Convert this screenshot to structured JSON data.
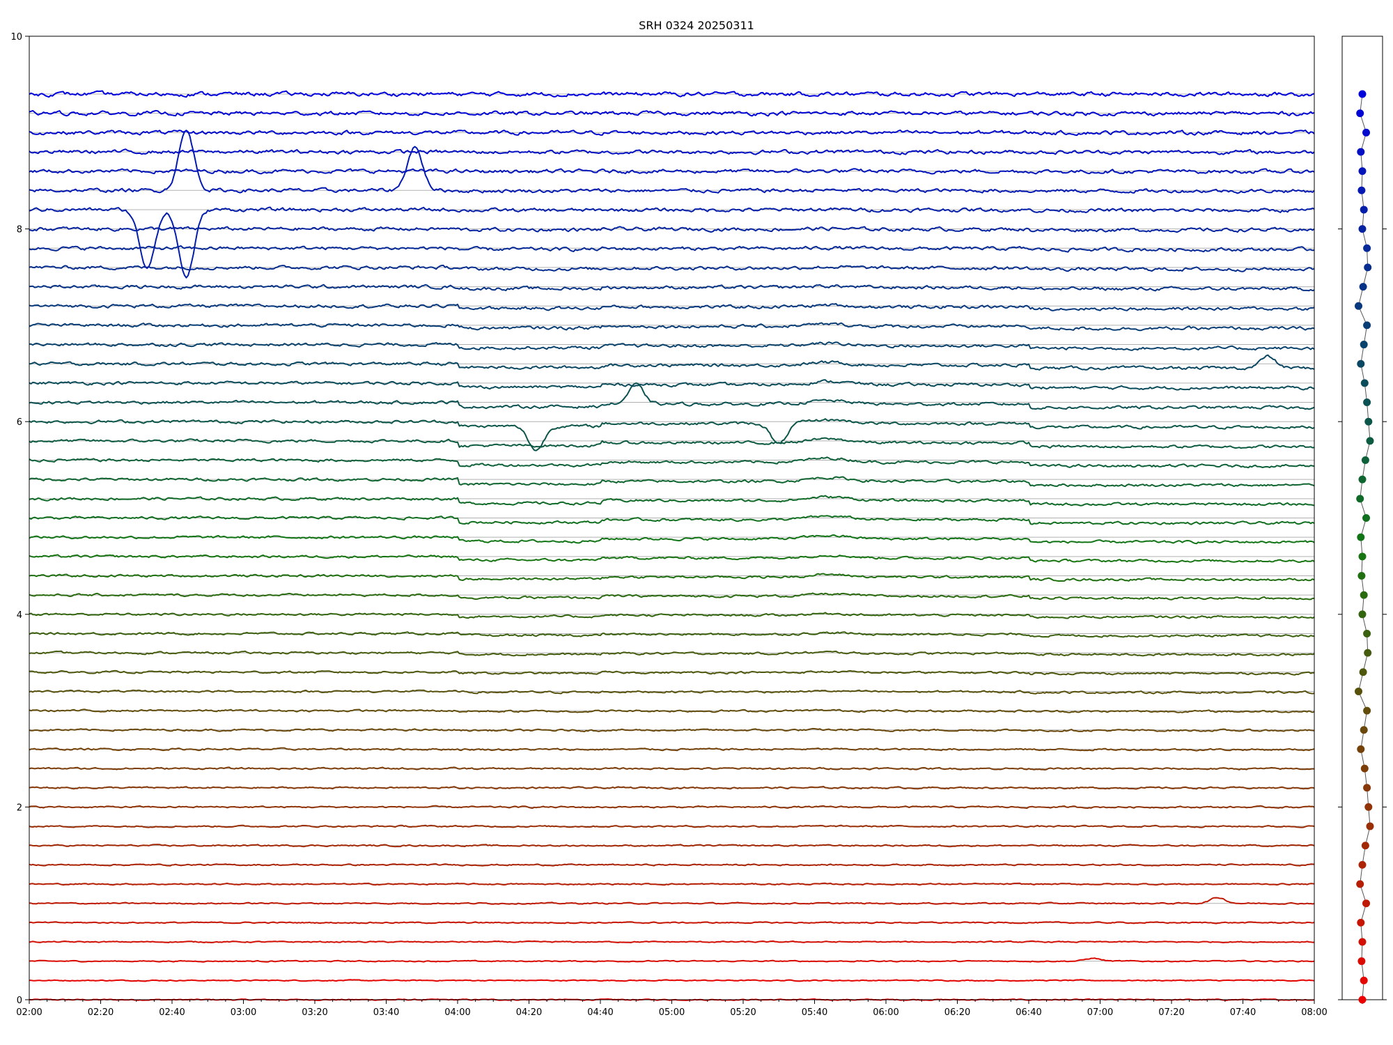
{
  "chart_data": [
    {
      "type": "line",
      "title": "SRH 0324 20250311",
      "xlabel": "",
      "ylabel": "",
      "xlim": [
        "02:00",
        "08:00"
      ],
      "ylim": [
        0,
        10
      ],
      "grid": "horizontal lines at each series baseline",
      "legend": "none",
      "x_tick_labels": [
        "02:00",
        "02:20",
        "02:40",
        "03:00",
        "03:20",
        "03:40",
        "04:00",
        "04:20",
        "04:40",
        "05:00",
        "05:20",
        "05:40",
        "06:00",
        "06:20",
        "06:40",
        "07:00",
        "07:20",
        "07:40",
        "08:00"
      ],
      "y_tick_labels": [
        "0",
        "2",
        "4",
        "6",
        "8",
        "10"
      ],
      "y_ticks": [
        0,
        2,
        4,
        6,
        8,
        10
      ],
      "series_count": 48,
      "baselines": [
        0.0,
        0.2,
        0.4,
        0.6,
        0.8,
        1.0,
        1.2,
        1.4,
        1.6,
        1.8,
        2.0,
        2.2,
        2.4,
        2.6,
        2.8,
        3.0,
        3.2,
        3.4,
        3.6,
        3.8,
        4.0,
        4.2,
        4.4,
        4.6,
        4.8,
        5.0,
        5.2,
        5.4,
        5.6,
        5.8,
        6.0,
        6.2,
        6.4,
        6.6,
        6.8,
        7.0,
        7.2,
        7.4,
        7.6,
        7.8,
        8.0,
        8.2,
        8.4,
        8.6,
        8.8,
        9.0,
        9.2,
        9.4
      ],
      "color_start": "#ee0000",
      "color_middle": "#117711",
      "color_end": "#0000dd",
      "notable_events": [
        {
          "series_index": 42,
          "time": "02:44",
          "delta": 0.62
        },
        {
          "series_index": 42,
          "time": "03:48",
          "delta": 0.45
        },
        {
          "series_index": 41,
          "time": "02:33",
          "delta": -0.6
        },
        {
          "series_index": 41,
          "time": "02:44",
          "delta": -0.7
        },
        {
          "series_index": 30,
          "time": "04:22",
          "delta": -0.25
        },
        {
          "series_index": 30,
          "time": "05:30",
          "delta": -0.22
        },
        {
          "series_index": 31,
          "time": "04:50",
          "delta": 0.2
        },
        {
          "series_index": 33,
          "time": "07:47",
          "delta": 0.12
        },
        {
          "series_index": 5,
          "time": "07:33",
          "delta": 0.06
        },
        {
          "series_index": 2,
          "time": "06:58",
          "delta": 0.03
        }
      ]
    },
    {
      "type": "scatter",
      "title": "",
      "description_values": [
        0.0,
        0.02,
        -0.01,
        0.0,
        -0.02,
        0.05,
        -0.03,
        0.0,
        0.04,
        0.1,
        0.08,
        0.06,
        0.03,
        -0.02,
        0.02,
        0.06,
        -0.05,
        0.01,
        0.07,
        0.06
      ]
    }
  ]
}
